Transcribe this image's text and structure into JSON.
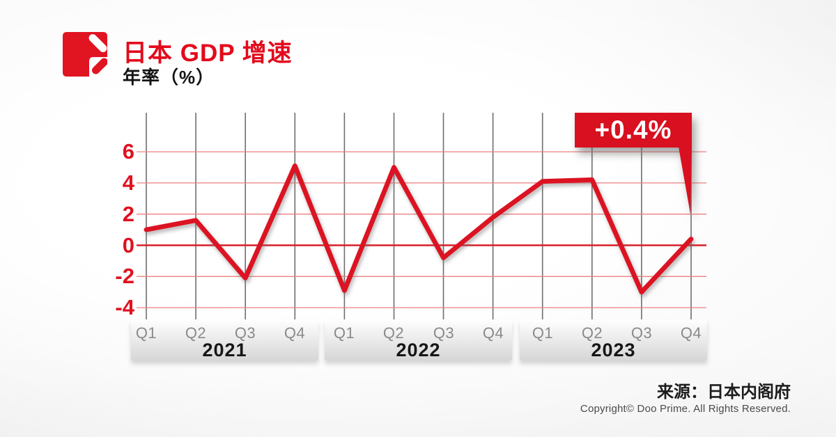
{
  "header": {
    "title": "日本 GDP 增速",
    "subtitle": "年率（%）"
  },
  "callout": {
    "label": "+0.4%",
    "target": "2023 Q4"
  },
  "footer": {
    "source": "来源：日本内阁府",
    "copyright": "Copyright© Doo Prime. All Rights Reserved."
  },
  "colors": {
    "accent_red": "#e30a1c",
    "line_red": "#dc1322",
    "banner_red": "#d8101f",
    "grid_red_light": "#ee7f7f",
    "zero_line_red": "#d7202a",
    "vline_gray": "#6e6e6e",
    "quarter_gray": "#8a8a8a",
    "year_black": "#161616",
    "band_gradient_top": "#fefefe",
    "band_gradient_bottom": "#d6d6d6"
  },
  "chart_data": {
    "type": "line",
    "title": "日本 GDP 增速",
    "ylabel": "年率（%）",
    "yticks": [
      6,
      4,
      2,
      0,
      -2,
      -4
    ],
    "ylim": [
      -4,
      6
    ],
    "grid": true,
    "legend_position": "none",
    "year_groups": [
      {
        "year": "2021",
        "quarters": [
          "Q1",
          "Q2",
          "Q3",
          "Q4"
        ]
      },
      {
        "year": "2022",
        "quarters": [
          "Q1",
          "Q2",
          "Q3",
          "Q4"
        ]
      },
      {
        "year": "2023",
        "quarters": [
          "Q1",
          "Q2",
          "Q3",
          "Q4"
        ]
      }
    ],
    "categories": [
      "2021 Q1",
      "2021 Q2",
      "2021 Q3",
      "2021 Q4",
      "2022 Q1",
      "2022 Q2",
      "2022 Q3",
      "2022 Q4",
      "2023 Q1",
      "2023 Q2",
      "2023 Q3",
      "2023 Q4"
    ],
    "series": [
      {
        "name": "日本 GDP 年率 (%)",
        "values": [
          1.0,
          1.6,
          -2.1,
          5.1,
          -2.9,
          5.0,
          -0.8,
          1.8,
          4.1,
          4.2,
          -3.0,
          0.4
        ]
      }
    ],
    "annotation": {
      "text": "+0.4%",
      "category": "2023 Q4"
    }
  }
}
